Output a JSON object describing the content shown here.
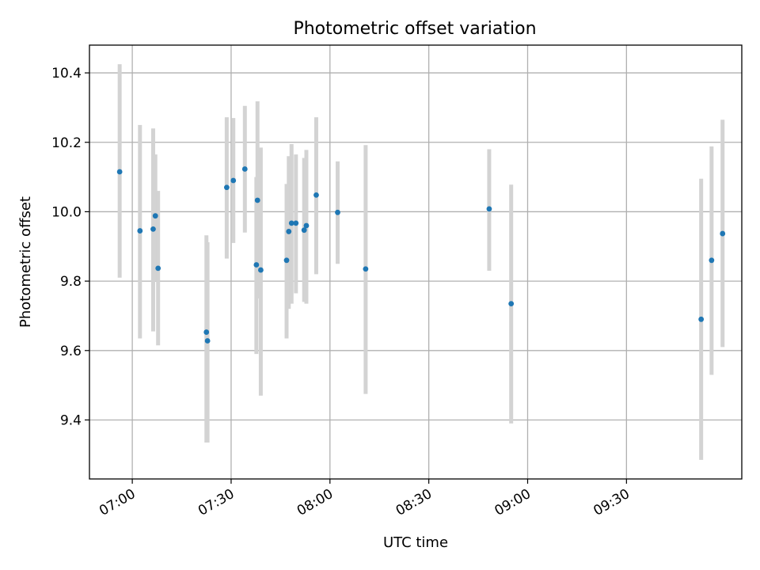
{
  "chart_data": {
    "type": "scatter",
    "title": "Photometric offset variation",
    "xlabel": "UTC time",
    "ylabel": "Photometric offset",
    "x_axis_kind": "time",
    "xlim": [
      "06:47",
      "10:05"
    ],
    "ylim": [
      9.23,
      10.48
    ],
    "x_ticks": [
      "07:00",
      "07:30",
      "08:00",
      "08:30",
      "09:00",
      "09:30"
    ],
    "y_ticks": [
      9.4,
      9.6,
      9.8,
      10.0,
      10.2,
      10.4
    ],
    "y_tick_labels": [
      "9.4",
      "9.6",
      "9.8",
      "10.0",
      "10.2",
      "10.4"
    ],
    "grid": true,
    "colors": {
      "point": "#1f77b4",
      "errorbar": "#d3d3d3"
    },
    "series": [
      {
        "points": [
          {
            "x": "06:56:10",
            "y": 10.115,
            "err_low": 9.81,
            "err_high": 10.425
          },
          {
            "x": "07:02:20",
            "y": 9.945,
            "err_low": 9.635,
            "err_high": 10.25
          },
          {
            "x": "07:06:20",
            "y": 9.95,
            "err_low": 9.655,
            "err_high": 10.24
          },
          {
            "x": "07:07:00",
            "y": 9.988,
            "err_low": 9.8,
            "err_high": 10.165
          },
          {
            "x": "07:07:50",
            "y": 9.837,
            "err_low": 9.615,
            "err_high": 10.06
          },
          {
            "x": "07:22:30",
            "y": 9.653,
            "err_low": 9.335,
            "err_high": 9.932
          },
          {
            "x": "07:22:50",
            "y": 9.628,
            "err_low": 9.335,
            "err_high": 9.912
          },
          {
            "x": "07:28:40",
            "y": 10.07,
            "err_low": 9.865,
            "err_high": 10.272
          },
          {
            "x": "07:30:40",
            "y": 10.09,
            "err_low": 9.91,
            "err_high": 10.27
          },
          {
            "x": "07:34:10",
            "y": 10.123,
            "err_low": 9.94,
            "err_high": 10.305
          },
          {
            "x": "07:37:40",
            "y": 9.847,
            "err_low": 9.59,
            "err_high": 10.1
          },
          {
            "x": "07:38:00",
            "y": 10.033,
            "err_low": 9.75,
            "err_high": 10.318
          },
          {
            "x": "07:39:00",
            "y": 9.832,
            "err_low": 9.47,
            "err_high": 10.185
          },
          {
            "x": "07:46:50",
            "y": 9.86,
            "err_low": 9.635,
            "err_high": 10.08
          },
          {
            "x": "07:47:30",
            "y": 9.943,
            "err_low": 9.72,
            "err_high": 10.16
          },
          {
            "x": "07:48:20",
            "y": 9.967,
            "err_low": 9.735,
            "err_high": 10.195
          },
          {
            "x": "07:49:40",
            "y": 9.967,
            "err_low": 9.765,
            "err_high": 10.165
          },
          {
            "x": "07:52:10",
            "y": 9.947,
            "err_low": 9.74,
            "err_high": 10.155
          },
          {
            "x": "07:52:50",
            "y": 9.96,
            "err_low": 9.735,
            "err_high": 10.178
          },
          {
            "x": "07:55:50",
            "y": 10.048,
            "err_low": 9.82,
            "err_high": 10.272
          },
          {
            "x": "08:02:20",
            "y": 9.998,
            "err_low": 9.85,
            "err_high": 10.145
          },
          {
            "x": "08:10:50",
            "y": 9.835,
            "err_low": 9.475,
            "err_high": 10.192
          },
          {
            "x": "08:48:20",
            "y": 10.008,
            "err_low": 9.83,
            "err_high": 10.18
          },
          {
            "x": "08:55:00",
            "y": 9.735,
            "err_low": 9.39,
            "err_high": 10.078
          },
          {
            "x": "09:52:40",
            "y": 9.69,
            "err_low": 9.285,
            "err_high": 10.095
          },
          {
            "x": "09:55:50",
            "y": 9.86,
            "err_low": 9.53,
            "err_high": 10.188
          },
          {
            "x": "09:59:10",
            "y": 9.937,
            "err_low": 9.61,
            "err_high": 10.265
          }
        ]
      }
    ]
  }
}
